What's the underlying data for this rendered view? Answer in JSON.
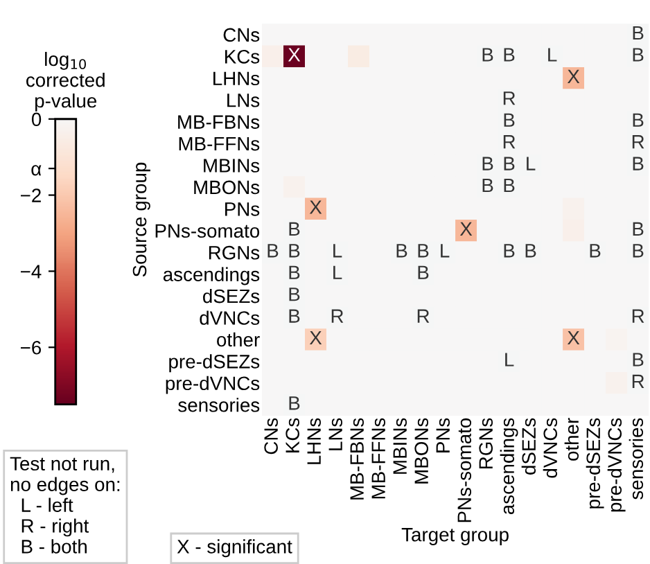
{
  "chart_data": {
    "type": "heatmap",
    "categories": [
      "CNs",
      "KCs",
      "LHNs",
      "LNs",
      "MB-FBNs",
      "MB-FFNs",
      "MBINs",
      "MBONs",
      "PNs",
      "PNs-somato",
      "RGNs",
      "ascendings",
      "dSEZs",
      "dVNCs",
      "other",
      "pre-dSEZs",
      "pre-dVNCs",
      "sensories"
    ],
    "y_categories": [
      "CNs",
      "KCs",
      "LHNs",
      "LNs",
      "MB-FBNs",
      "MB-FFNs",
      "MBINs",
      "MBONs",
      "PNs",
      "PNs-somato",
      "RGNs",
      "ascendings",
      "dSEZs",
      "dVNCs",
      "other",
      "pre-dSEZs",
      "pre-dVNCs",
      "sensories"
    ],
    "cells": [
      [
        0,
        0,
        0,
        0,
        0,
        0,
        0,
        0,
        0,
        0,
        0,
        0,
        0,
        0,
        0,
        0,
        0,
        null
      ],
      [
        -0.4,
        -7.4,
        0,
        0,
        -0.6,
        0,
        0,
        0,
        0,
        0,
        null,
        null,
        0,
        null,
        0,
        0,
        0,
        null
      ],
      [
        0,
        0,
        0,
        0,
        0,
        0,
        0,
        0,
        0,
        0,
        0,
        0,
        0,
        0,
        -2.5,
        0,
        0,
        0
      ],
      [
        0,
        0,
        0,
        0,
        0,
        0,
        0,
        0,
        0,
        0,
        0,
        null,
        0,
        0,
        0,
        0,
        0,
        0
      ],
      [
        0,
        0,
        0,
        0,
        0,
        0,
        0,
        0,
        0,
        0,
        0,
        null,
        0,
        0,
        0,
        0,
        0,
        null
      ],
      [
        0,
        0,
        0,
        0,
        0,
        0,
        0,
        0,
        0,
        0,
        0,
        null,
        0,
        0,
        0,
        0,
        0,
        null
      ],
      [
        0,
        0,
        0,
        0,
        0,
        0,
        0,
        0,
        0,
        0,
        null,
        null,
        null,
        0,
        0,
        0,
        0,
        null
      ],
      [
        0,
        -0.3,
        0,
        0,
        0,
        0,
        0,
        0,
        0,
        0,
        null,
        null,
        0,
        0,
        0,
        0,
        0,
        0
      ],
      [
        0,
        0,
        -2.5,
        0,
        0,
        0,
        0,
        0,
        0,
        0,
        0,
        0,
        0,
        0,
        -0.3,
        0,
        0,
        0
      ],
      [
        0,
        null,
        0,
        0,
        0,
        0,
        0,
        0,
        0,
        -2.5,
        0,
        0,
        0,
        0,
        -0.4,
        0,
        0,
        null
      ],
      [
        null,
        null,
        0,
        null,
        0,
        0,
        null,
        null,
        null,
        0,
        0,
        null,
        null,
        0,
        0,
        null,
        0,
        null
      ],
      [
        0,
        null,
        0,
        null,
        0,
        0,
        0,
        null,
        0,
        0,
        0,
        0,
        0,
        0,
        0,
        0,
        0,
        0
      ],
      [
        0,
        null,
        0,
        0,
        0,
        0,
        0,
        0,
        0,
        0,
        0,
        0,
        0,
        0,
        0,
        0,
        0,
        0
      ],
      [
        0,
        null,
        0,
        null,
        0,
        0,
        0,
        null,
        0,
        0,
        0,
        0,
        0,
        0,
        0,
        0,
        0,
        null
      ],
      [
        0,
        0,
        -1.8,
        0,
        0,
        0,
        0,
        0,
        0,
        0,
        0,
        0,
        0,
        0,
        -2.2,
        0,
        -0.2,
        0
      ],
      [
        0,
        0,
        0,
        0,
        0,
        0,
        0,
        0,
        0,
        0,
        0,
        null,
        0,
        0,
        0,
        0,
        0,
        null
      ],
      [
        0,
        0,
        0,
        0,
        0,
        0,
        0,
        0,
        0,
        0,
        0,
        0,
        0,
        0,
        0,
        0,
        -0.3,
        null
      ],
      [
        0,
        null,
        0,
        0,
        0,
        0,
        0,
        0,
        0,
        0,
        0,
        0,
        0,
        0,
        0,
        0,
        0,
        0
      ]
    ],
    "cell_labels": [
      [
        null,
        null,
        null,
        null,
        null,
        null,
        null,
        null,
        null,
        null,
        null,
        null,
        null,
        null,
        null,
        null,
        null,
        "B"
      ],
      [
        null,
        "X",
        null,
        null,
        null,
        null,
        null,
        null,
        null,
        null,
        "B",
        "B",
        null,
        "L",
        null,
        null,
        null,
        "B"
      ],
      [
        null,
        null,
        null,
        null,
        null,
        null,
        null,
        null,
        null,
        null,
        null,
        null,
        null,
        null,
        "X",
        null,
        null,
        null
      ],
      [
        null,
        null,
        null,
        null,
        null,
        null,
        null,
        null,
        null,
        null,
        null,
        "R",
        null,
        null,
        null,
        null,
        null,
        null
      ],
      [
        null,
        null,
        null,
        null,
        null,
        null,
        null,
        null,
        null,
        null,
        null,
        "B",
        null,
        null,
        null,
        null,
        null,
        "B"
      ],
      [
        null,
        null,
        null,
        null,
        null,
        null,
        null,
        null,
        null,
        null,
        null,
        "R",
        null,
        null,
        null,
        null,
        null,
        "R"
      ],
      [
        null,
        null,
        null,
        null,
        null,
        null,
        null,
        null,
        null,
        null,
        "B",
        "B",
        "L",
        null,
        null,
        null,
        null,
        "B"
      ],
      [
        null,
        null,
        null,
        null,
        null,
        null,
        null,
        null,
        null,
        null,
        "B",
        "B",
        null,
        null,
        null,
        null,
        null,
        null
      ],
      [
        null,
        null,
        "X",
        null,
        null,
        null,
        null,
        null,
        null,
        null,
        null,
        null,
        null,
        null,
        null,
        null,
        null,
        null
      ],
      [
        null,
        "B",
        null,
        null,
        null,
        null,
        null,
        null,
        null,
        "X",
        null,
        null,
        null,
        null,
        null,
        null,
        null,
        "B"
      ],
      [
        "B",
        "B",
        null,
        "L",
        null,
        null,
        "B",
        "B",
        "L",
        null,
        null,
        "B",
        "B",
        null,
        null,
        "B",
        null,
        "B"
      ],
      [
        null,
        "B",
        null,
        "L",
        null,
        null,
        null,
        "B",
        null,
        null,
        null,
        null,
        null,
        null,
        null,
        null,
        null,
        null
      ],
      [
        null,
        "B",
        null,
        null,
        null,
        null,
        null,
        null,
        null,
        null,
        null,
        null,
        null,
        null,
        null,
        null,
        null,
        null
      ],
      [
        null,
        "B",
        null,
        "R",
        null,
        null,
        null,
        "R",
        null,
        null,
        null,
        null,
        null,
        null,
        null,
        null,
        null,
        "R"
      ],
      [
        null,
        null,
        "X",
        null,
        null,
        null,
        null,
        null,
        null,
        null,
        null,
        null,
        null,
        null,
        "X",
        null,
        null,
        null
      ],
      [
        null,
        null,
        null,
        null,
        null,
        null,
        null,
        null,
        null,
        null,
        null,
        "L",
        null,
        null,
        null,
        null,
        null,
        "B"
      ],
      [
        null,
        null,
        null,
        null,
        null,
        null,
        null,
        null,
        null,
        null,
        null,
        null,
        null,
        null,
        null,
        null,
        null,
        "R"
      ],
      [
        null,
        "B",
        null,
        null,
        null,
        null,
        null,
        null,
        null,
        null,
        null,
        null,
        null,
        null,
        null,
        null,
        null,
        null
      ]
    ],
    "clim": [
      -7.5,
      0
    ],
    "cticks": [
      0,
      {
        "value": -1.3,
        "label": "α"
      },
      -2,
      -4,
      -6
    ],
    "clabel": "log$_{10}$\ncorrected\np-value",
    "xlabel": "Target group",
    "ylabel": "Source group",
    "annotations": [
      "Test not run,\nno edges on:\n  L - left\n  R - right\n  B - both",
      "X - significant"
    ]
  }
}
